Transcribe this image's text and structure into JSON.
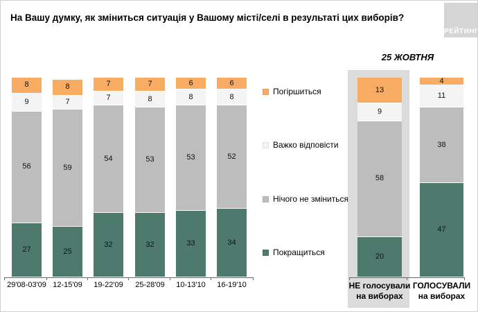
{
  "title": "На Вашу думку, як зміниться ситуація у Вашому місті/селі в результаті цих виборів?",
  "logo_text": "РЕЙТИНГ",
  "legend": [
    {
      "label": "Погіршиться",
      "color": "#f8ab62"
    },
    {
      "label": "Важко відповісти",
      "color": "#f4f4f4"
    },
    {
      "label": "Нічого не зміниться",
      "color": "#bdbdbd"
    },
    {
      "label": "Покращиться",
      "color": "#4e7a6e"
    }
  ],
  "chart_data": [
    {
      "type": "bar",
      "stacked": true,
      "title": "На Вашу думку, як зміниться ситуація у Вашому місті/селі в результаті цих виборів?",
      "unit": "percent",
      "ylim": [
        0,
        100
      ],
      "grid": false,
      "legend_position": "right",
      "categories": [
        "29'08-03'09",
        "12-15'09",
        "19-22'09",
        "25-28'09",
        "10-13'10",
        "16-19'10"
      ],
      "series": [
        {
          "name": "Покращиться",
          "color": "#4e7a6e",
          "values": [
            27,
            25,
            32,
            32,
            33,
            34
          ]
        },
        {
          "name": "Нічого не зміниться",
          "color": "#bdbdbd",
          "values": [
            56,
            59,
            54,
            53,
            53,
            52
          ]
        },
        {
          "name": "Важко відповісти",
          "color": "#f4f4f4",
          "values": [
            9,
            7,
            7,
            8,
            8,
            8
          ]
        },
        {
          "name": "Погіршиться",
          "color": "#f8ab62",
          "values": [
            8,
            8,
            7,
            7,
            6,
            6
          ]
        }
      ]
    },
    {
      "type": "bar",
      "stacked": true,
      "title": "25 ЖОВТНЯ",
      "unit": "percent",
      "ylim": [
        0,
        100
      ],
      "grid": false,
      "highlighted_category": "НЕ голосували на виборах",
      "categories": [
        [
          "НЕ голосували",
          "на виборах"
        ],
        [
          "ГОЛОСУВАЛИ",
          "на виборах"
        ]
      ],
      "series": [
        {
          "name": "Покращиться",
          "color": "#4e7a6e",
          "values": [
            20,
            47
          ]
        },
        {
          "name": "Нічого не зміниться",
          "color": "#bdbdbd",
          "values": [
            58,
            38
          ]
        },
        {
          "name": "Важко відповісти",
          "color": "#f4f4f4",
          "values": [
            9,
            11
          ]
        },
        {
          "name": "Погіршиться",
          "color": "#f8ab62",
          "values": [
            13,
            4
          ]
        }
      ]
    }
  ]
}
